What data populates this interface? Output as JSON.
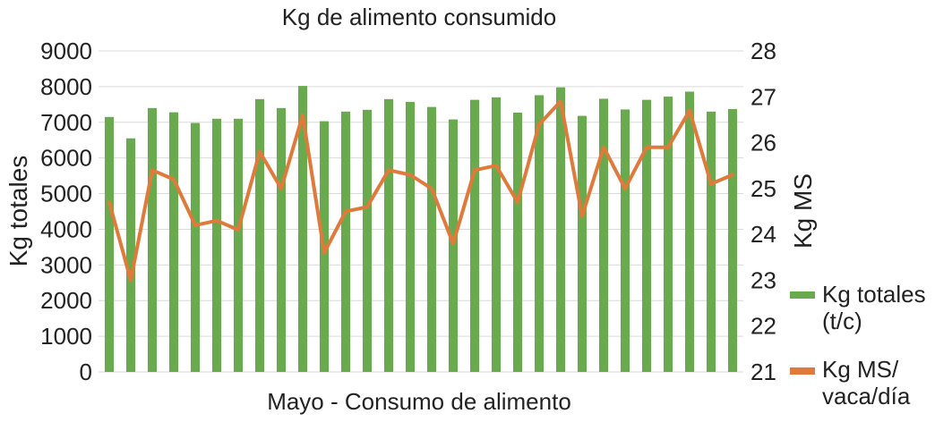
{
  "chart_data": {
    "type": "bar",
    "title": "Kg de alimento consumido",
    "xlabel": "Mayo - Consumo de alimento",
    "ylabel": "Kg totales",
    "y2label": "Kg MS",
    "ylim": [
      0,
      9000
    ],
    "y2lim": [
      21,
      28
    ],
    "yticks": [
      "0",
      "1000",
      "2000",
      "3000",
      "4000",
      "5000",
      "6000",
      "7000",
      "8000",
      "9000"
    ],
    "y2ticks": [
      "21",
      "22",
      "23",
      "24",
      "25",
      "26",
      "27",
      "28"
    ],
    "legend_position": "right",
    "grid": true,
    "series": [
      {
        "name": "Kg totales (t/c)",
        "legend_lines": [
          "Kg totales",
          "(t/c)"
        ],
        "type": "bar",
        "axis": "left",
        "color": "#6aaa4f",
        "values": [
          7150,
          6550,
          7400,
          7280,
          6980,
          7100,
          7100,
          7650,
          7400,
          8020,
          7030,
          7300,
          7350,
          7650,
          7570,
          7430,
          7080,
          7630,
          7700,
          7270,
          7760,
          7980,
          7180,
          7660,
          7360,
          7630,
          7720,
          7860,
          7300,
          7370
        ]
      },
      {
        "name": "Kg MS/ vaca/día",
        "legend_lines": [
          "Kg MS/",
          "vaca/día"
        ],
        "type": "line",
        "axis": "right",
        "color": "#e07a3a",
        "values": [
          24.7,
          23.0,
          25.4,
          25.2,
          24.2,
          24.3,
          24.1,
          25.8,
          25.0,
          26.6,
          23.6,
          24.5,
          24.6,
          25.4,
          25.3,
          25.0,
          23.8,
          25.4,
          25.5,
          24.7,
          26.4,
          26.9,
          24.4,
          25.9,
          25.0,
          25.9,
          25.9,
          26.7,
          25.1,
          25.3
        ]
      }
    ]
  }
}
